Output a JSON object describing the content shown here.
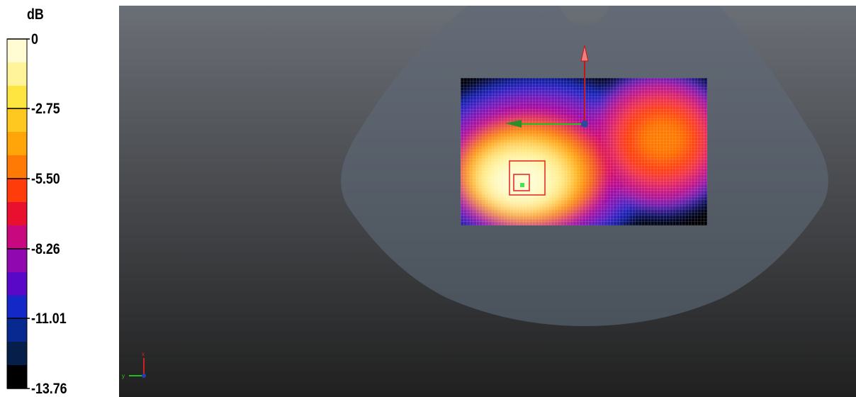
{
  "colorbar": {
    "title": "dB",
    "ticks": [
      "0",
      "-2.75",
      "-5.50",
      "-8.26",
      "-11.01",
      "-13.76"
    ]
  },
  "axes_triad": {
    "x": "x",
    "y": "y"
  }
}
